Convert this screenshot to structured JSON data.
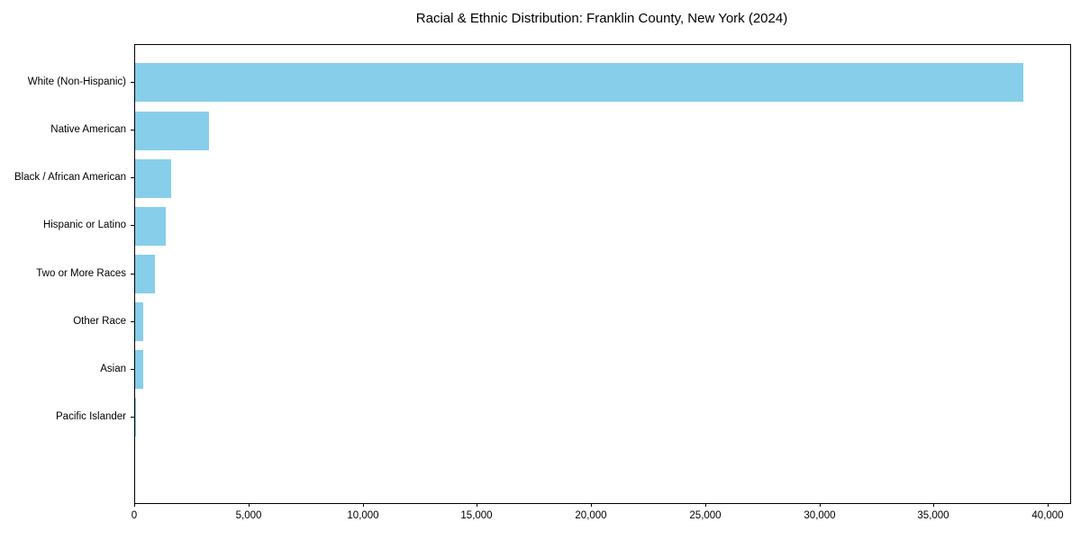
{
  "page": {
    "background_color": "#ffffff"
  },
  "chart_data": {
    "type": "bar",
    "orientation": "horizontal",
    "title": "Racial & Ethnic Distribution: Franklin County, New York (2024)",
    "categories": [
      "White (Non-Hispanic)",
      "Native American",
      "Black / African American",
      "Hispanic or Latino",
      "Two or More Races",
      "Other Race",
      "Asian",
      "Pacific Islander"
    ],
    "values": [
      38900,
      3250,
      1580,
      1340,
      870,
      360,
      350,
      20
    ],
    "xlabel": "",
    "ylabel": "",
    "xlim": [
      0,
      40947
    ],
    "xticks": [
      0,
      5000,
      10000,
      15000,
      20000,
      25000,
      30000,
      35000,
      40000
    ],
    "xtick_format": "comma",
    "grid": false,
    "legend": "none",
    "bar_color": "#87CEEB",
    "axis_color": "#000000",
    "text_color": "#000000"
  }
}
